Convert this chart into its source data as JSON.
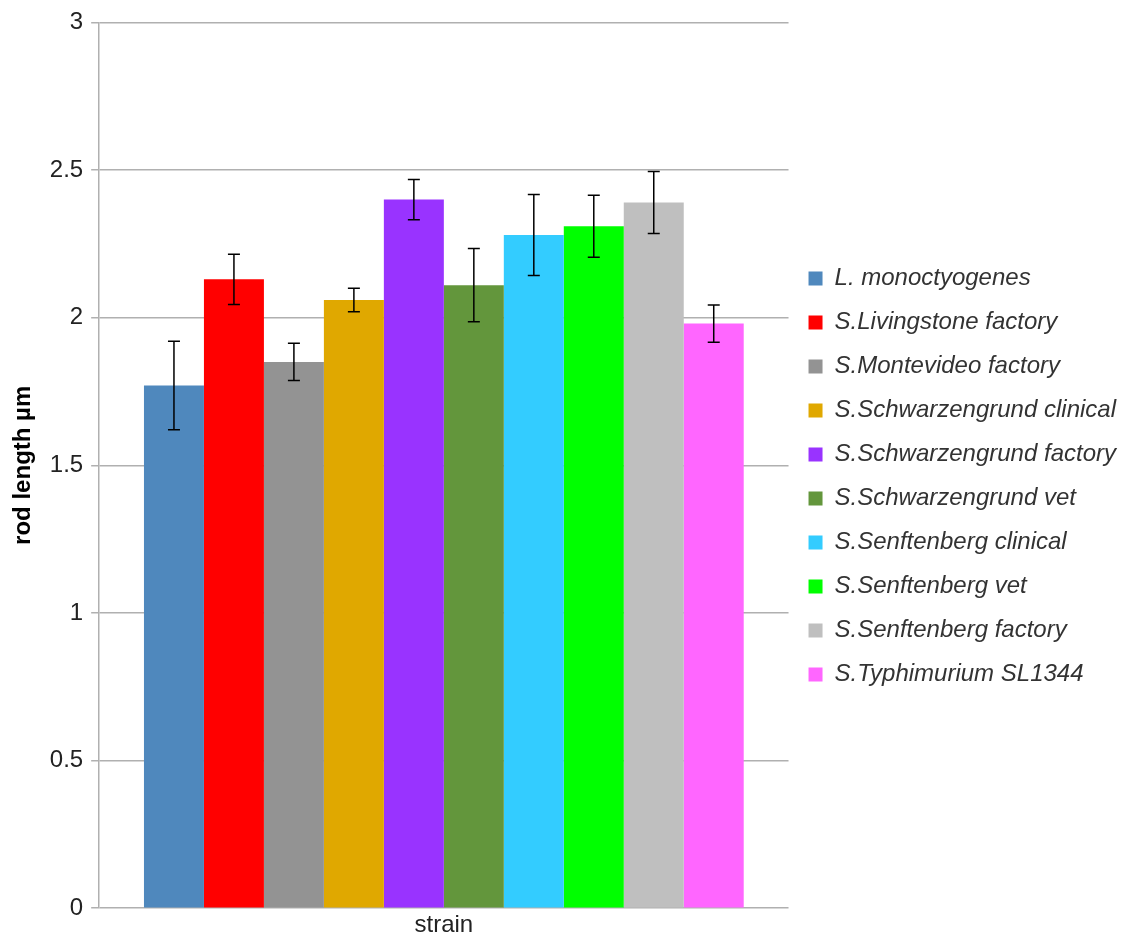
{
  "chart_data": {
    "type": "bar",
    "ylabel": "rod length µm",
    "categories": [
      "strain"
    ],
    "ylim": [
      0,
      3
    ],
    "yticks": [
      0,
      0.5,
      1,
      1.5,
      2,
      2.5,
      3
    ],
    "grid": "y",
    "legend": "right",
    "series": [
      {
        "name": "L. monoctyogenes",
        "color": "#4f88bd",
        "values": [
          1.77
        ],
        "errors": [
          0.15
        ]
      },
      {
        "name": "S.Livingstone factory",
        "color": "#ff0000",
        "values": [
          2.13
        ],
        "errors": [
          0.085
        ]
      },
      {
        "name": "S.Montevideo factory",
        "color": "#939393",
        "values": [
          1.85
        ],
        "errors": [
          0.063
        ]
      },
      {
        "name": "S.Schwarzengrund clinical",
        "color": "#e0a800",
        "values": [
          2.06
        ],
        "errors": [
          0.04
        ]
      },
      {
        "name": "S.Schwarzengrund factory",
        "color": "#9933ff",
        "values": [
          2.4
        ],
        "errors": [
          0.068
        ]
      },
      {
        "name": "S.Schwarzengrund vet",
        "color": "#63963c",
        "values": [
          2.11
        ],
        "errors": [
          0.124
        ]
      },
      {
        "name": "S.Senftenberg clinical",
        "color": "#33ccff",
        "values": [
          2.28
        ],
        "errors": [
          0.137
        ]
      },
      {
        "name": "S.Senftenberg vet",
        "color": "#00ff00",
        "values": [
          2.31
        ],
        "errors": [
          0.105
        ]
      },
      {
        "name": "S.Senftenberg factory",
        "color": "#bfbfbf",
        "values": [
          2.39
        ],
        "errors": [
          0.105
        ]
      },
      {
        "name": "S.Typhimurium SL1344",
        "color": "#ff66ff",
        "values": [
          1.98
        ],
        "errors": [
          0.063
        ]
      }
    ]
  }
}
